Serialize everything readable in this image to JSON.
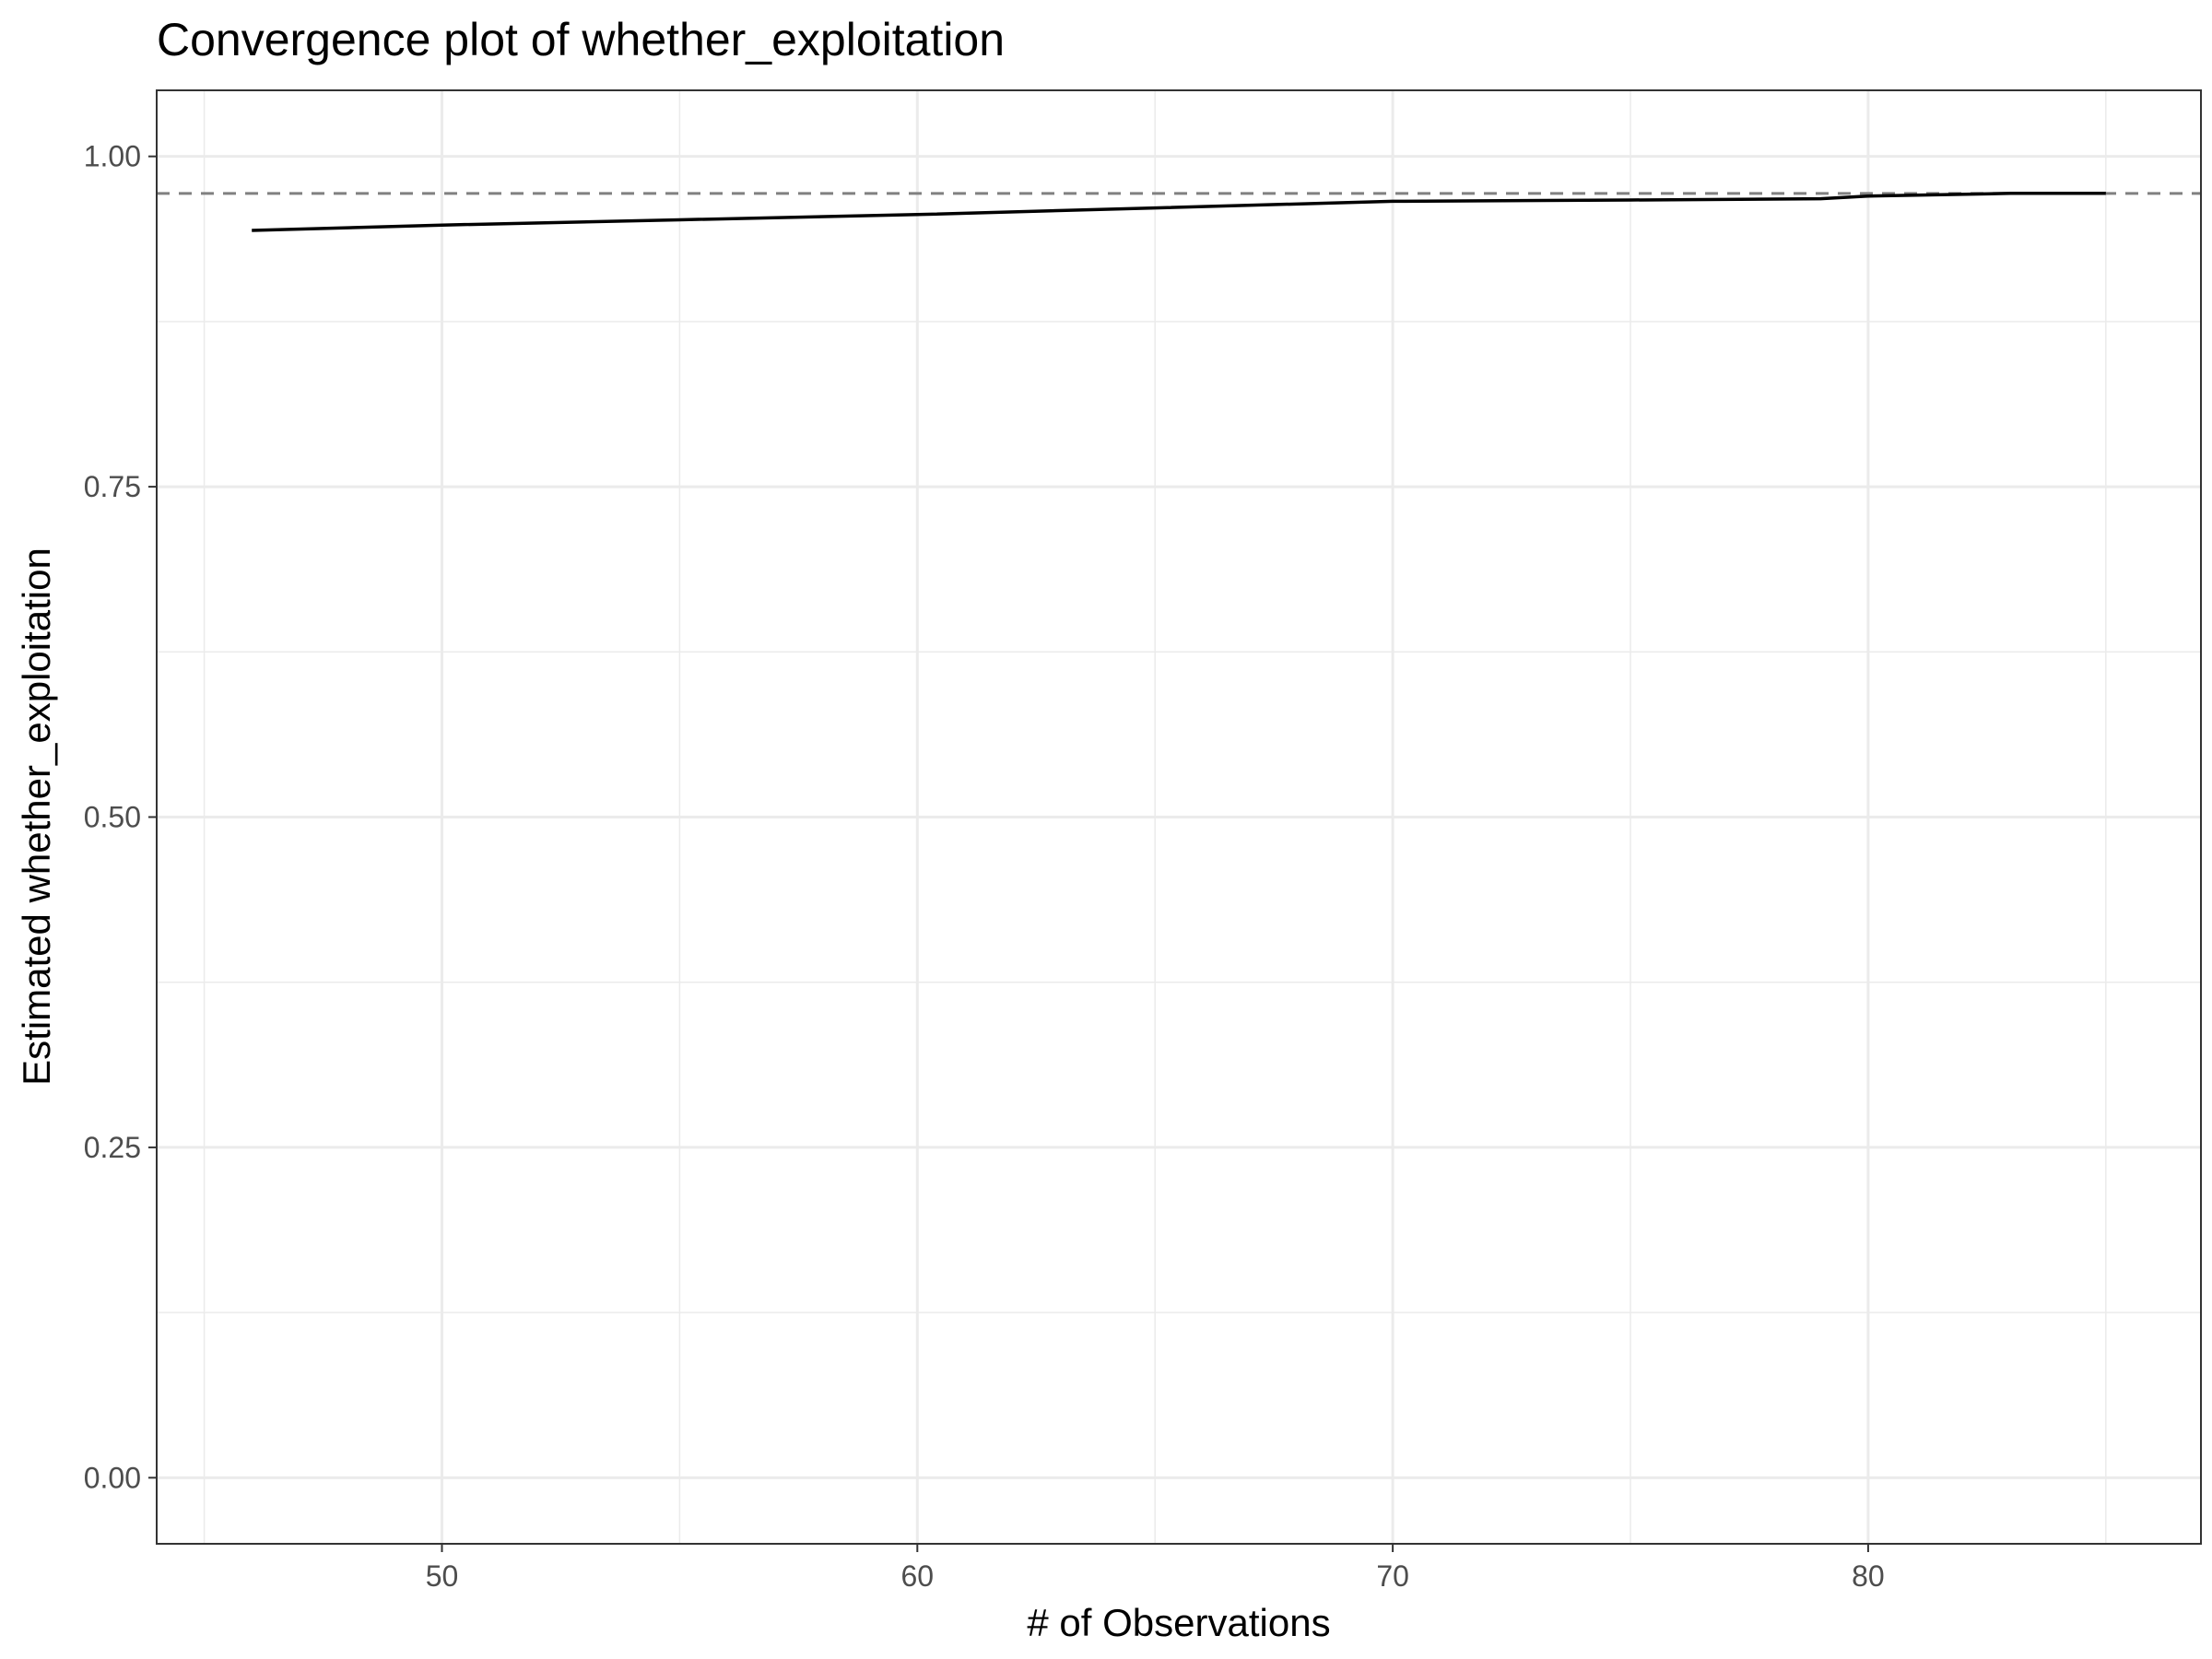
{
  "chart_data": {
    "type": "line",
    "title": "Convergence plot of whether_exploitation",
    "xlabel": "# of Observations",
    "ylabel": "Estimated whether_exploitation",
    "xlim": [
      44,
      87
    ],
    "ylim": [
      -0.05,
      1.05
    ],
    "x_ticks": [
      50,
      60,
      70,
      80
    ],
    "x_tick_labels": [
      "50",
      "60",
      "70",
      "80"
    ],
    "x_minor_ticks": [
      45,
      55,
      65,
      75,
      85
    ],
    "y_ticks": [
      0,
      0.25,
      0.5,
      0.75,
      1.0
    ],
    "y_tick_labels": [
      "0.00",
      "0.25",
      "0.50",
      "0.75",
      "1.00"
    ],
    "y_minor_ticks": [
      0.125,
      0.375,
      0.625,
      0.875
    ],
    "grid": true,
    "series": [
      {
        "x": [
          46,
          50,
          55,
          60,
          65,
          70,
          75,
          79,
          80,
          83,
          85
        ],
        "values": [
          0.944,
          0.948,
          0.952,
          0.956,
          0.961,
          0.966,
          0.967,
          0.968,
          0.97,
          0.972,
          0.972
        ],
        "color": "#000000",
        "style": "solid"
      }
    ],
    "reference_lines": [
      {
        "y": 0.972,
        "style": "dashed",
        "color": "#808080"
      }
    ],
    "colors": {
      "grid": "#ebebeb",
      "panel_border": "#333333",
      "tick_label": "#4d4d4d"
    }
  }
}
